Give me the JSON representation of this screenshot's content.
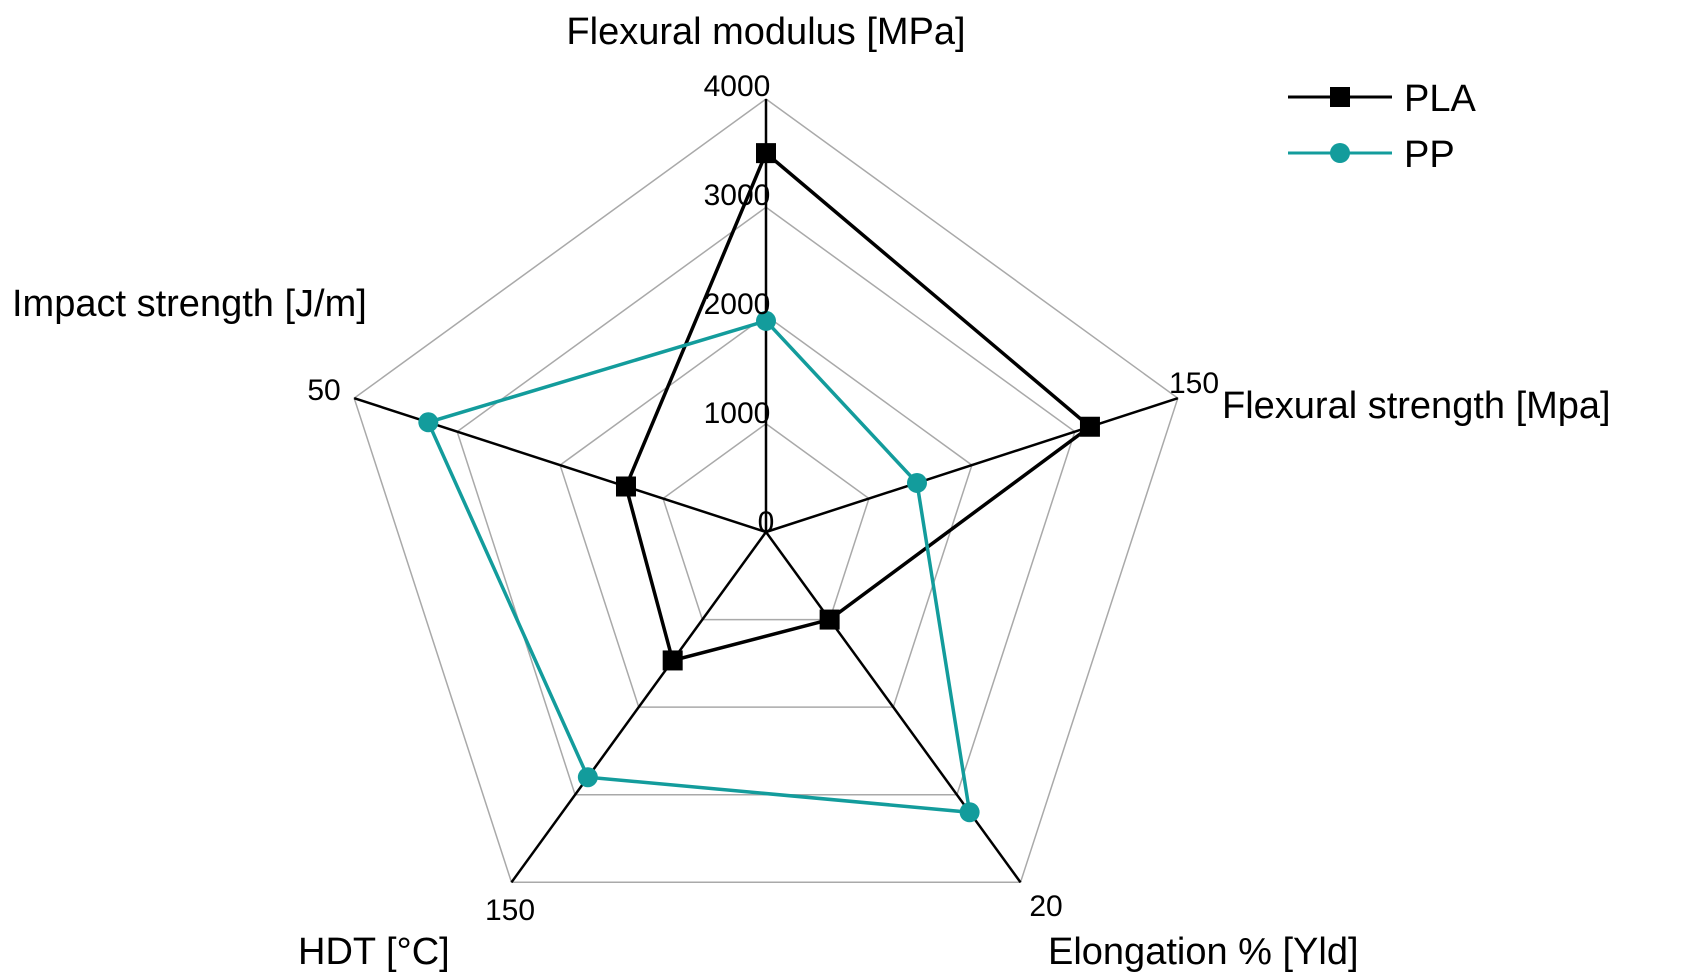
{
  "chart_data": {
    "type": "radar",
    "axes": [
      {
        "label": "Flexural modulus [MPa]",
        "max": 4000,
        "ticks": [
          0,
          1000,
          2000,
          3000,
          4000
        ],
        "tick_labels": [
          "0",
          "1000",
          "2000",
          "3000",
          "4000"
        ]
      },
      {
        "label": "Flexural strength [Mpa]",
        "max": 150,
        "tick_labels": [
          "150"
        ]
      },
      {
        "label": "Elongation % [Yld]",
        "max": 20,
        "tick_labels": [
          "20"
        ]
      },
      {
        "label": "HDT [°C]",
        "max": 150,
        "tick_labels": [
          "150"
        ]
      },
      {
        "label": "Impact strength [J/m]",
        "max": 50,
        "tick_labels": [
          "50"
        ]
      }
    ],
    "grid_rings": 4,
    "legend_position": "top-right",
    "series": [
      {
        "name": "PLA",
        "marker": "square",
        "color": "#000000",
        "values": [
          3500,
          118,
          5,
          55,
          17
        ]
      },
      {
        "name": "PP",
        "marker": "circle",
        "color": "#139c9c",
        "values": [
          1950,
          55,
          16,
          105,
          41
        ]
      }
    ]
  }
}
